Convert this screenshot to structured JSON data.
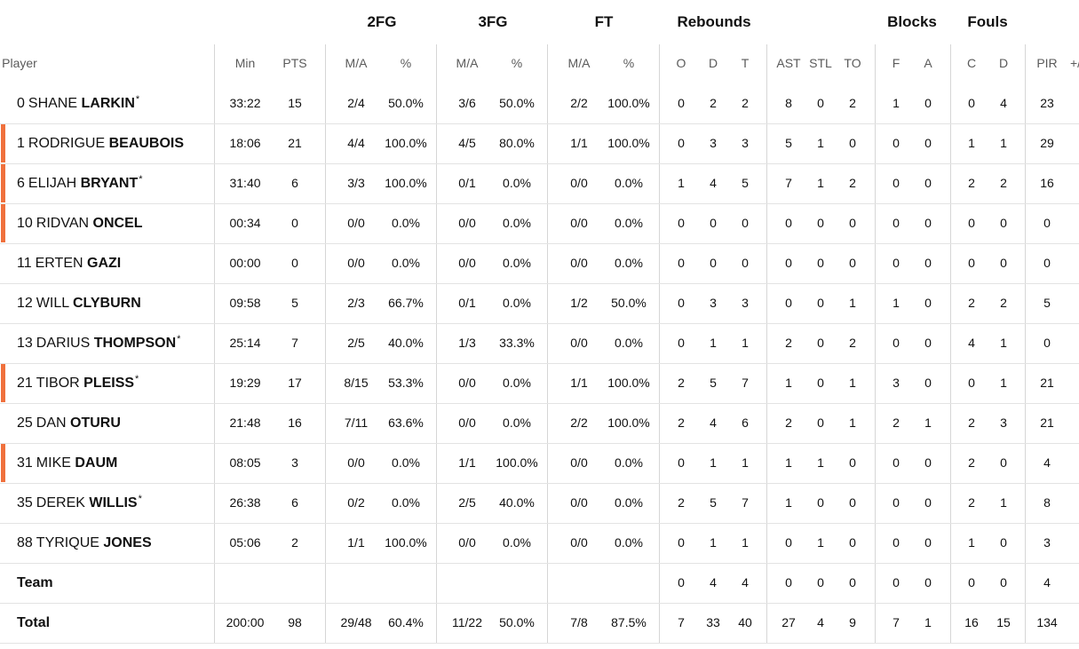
{
  "groups": {
    "fg2": "2FG",
    "fg3": "3FG",
    "ft": "FT",
    "reb": "Rebounds",
    "blk": "Blocks",
    "fouls": "Fouls"
  },
  "headers": {
    "player": "Player",
    "min": "Min",
    "pts": "PTS",
    "fg2_ma": "M/A",
    "fg2_pct": "%",
    "fg3_ma": "M/A",
    "fg3_pct": "%",
    "ft_ma": "M/A",
    "ft_pct": "%",
    "o": "O",
    "d": "D",
    "t": "T",
    "ast": "AST",
    "stl": "STL",
    "to": "TO",
    "f": "F",
    "a": "A",
    "c": "C",
    "d2": "D",
    "pir": "PIR",
    "pm": "+/"
  },
  "players": [
    {
      "num": "0",
      "first": "SHANE",
      "last": "LARKIN",
      "starter": true,
      "starter_mark": "*",
      "accent": false,
      "min": "33:22",
      "pts": "15",
      "fg2": "2/4",
      "fg2p": "50.0%",
      "fg3": "3/6",
      "fg3p": "50.0%",
      "ft": "2/2",
      "ftp": "100.0%",
      "o": "0",
      "d": "2",
      "t": "2",
      "ast": "8",
      "stl": "0",
      "to": "2",
      "bf": "1",
      "ba": "0",
      "fc": "0",
      "fd": "4",
      "pir": "23"
    },
    {
      "num": "1",
      "first": "RODRIGUE",
      "last": "BEAUBOIS",
      "starter": false,
      "starter_mark": "",
      "accent": true,
      "min": "18:06",
      "pts": "21",
      "fg2": "4/4",
      "fg2p": "100.0%",
      "fg3": "4/5",
      "fg3p": "80.0%",
      "ft": "1/1",
      "ftp": "100.0%",
      "o": "0",
      "d": "3",
      "t": "3",
      "ast": "5",
      "stl": "1",
      "to": "0",
      "bf": "0",
      "ba": "0",
      "fc": "1",
      "fd": "1",
      "pir": "29"
    },
    {
      "num": "6",
      "first": "ELIJAH",
      "last": "BRYANT",
      "starter": true,
      "starter_mark": "*",
      "accent": true,
      "min": "31:40",
      "pts": "6",
      "fg2": "3/3",
      "fg2p": "100.0%",
      "fg3": "0/1",
      "fg3p": "0.0%",
      "ft": "0/0",
      "ftp": "0.0%",
      "o": "1",
      "d": "4",
      "t": "5",
      "ast": "7",
      "stl": "1",
      "to": "2",
      "bf": "0",
      "ba": "0",
      "fc": "2",
      "fd": "2",
      "pir": "16"
    },
    {
      "num": "10",
      "first": "RIDVAN",
      "last": "ONCEL",
      "starter": false,
      "starter_mark": "",
      "accent": true,
      "min": "00:34",
      "pts": "0",
      "fg2": "0/0",
      "fg2p": "0.0%",
      "fg3": "0/0",
      "fg3p": "0.0%",
      "ft": "0/0",
      "ftp": "0.0%",
      "o": "0",
      "d": "0",
      "t": "0",
      "ast": "0",
      "stl": "0",
      "to": "0",
      "bf": "0",
      "ba": "0",
      "fc": "0",
      "fd": "0",
      "pir": "0"
    },
    {
      "num": "11",
      "first": "ERTEN",
      "last": "GAZI",
      "starter": false,
      "starter_mark": "",
      "accent": false,
      "min": "00:00",
      "pts": "0",
      "fg2": "0/0",
      "fg2p": "0.0%",
      "fg3": "0/0",
      "fg3p": "0.0%",
      "ft": "0/0",
      "ftp": "0.0%",
      "o": "0",
      "d": "0",
      "t": "0",
      "ast": "0",
      "stl": "0",
      "to": "0",
      "bf": "0",
      "ba": "0",
      "fc": "0",
      "fd": "0",
      "pir": "0"
    },
    {
      "num": "12",
      "first": "WILL",
      "last": "CLYBURN",
      "starter": false,
      "starter_mark": "",
      "accent": false,
      "min": "09:58",
      "pts": "5",
      "fg2": "2/3",
      "fg2p": "66.7%",
      "fg3": "0/1",
      "fg3p": "0.0%",
      "ft": "1/2",
      "ftp": "50.0%",
      "o": "0",
      "d": "3",
      "t": "3",
      "ast": "0",
      "stl": "0",
      "to": "1",
      "bf": "1",
      "ba": "0",
      "fc": "2",
      "fd": "2",
      "pir": "5"
    },
    {
      "num": "13",
      "first": "DARIUS",
      "last": "THOMPSON",
      "starter": true,
      "starter_mark": "*",
      "accent": false,
      "min": "25:14",
      "pts": "7",
      "fg2": "2/5",
      "fg2p": "40.0%",
      "fg3": "1/3",
      "fg3p": "33.3%",
      "ft": "0/0",
      "ftp": "0.0%",
      "o": "0",
      "d": "1",
      "t": "1",
      "ast": "2",
      "stl": "0",
      "to": "2",
      "bf": "0",
      "ba": "0",
      "fc": "4",
      "fd": "1",
      "pir": "0"
    },
    {
      "num": "21",
      "first": "TIBOR",
      "last": "PLEISS",
      "starter": true,
      "starter_mark": "*",
      "accent": true,
      "min": "19:29",
      "pts": "17",
      "fg2": "8/15",
      "fg2p": "53.3%",
      "fg3": "0/0",
      "fg3p": "0.0%",
      "ft": "1/1",
      "ftp": "100.0%",
      "o": "2",
      "d": "5",
      "t": "7",
      "ast": "1",
      "stl": "0",
      "to": "1",
      "bf": "3",
      "ba": "0",
      "fc": "0",
      "fd": "1",
      "pir": "21"
    },
    {
      "num": "25",
      "first": "DAN",
      "last": "OTURU",
      "starter": false,
      "starter_mark": "",
      "accent": false,
      "min": "21:48",
      "pts": "16",
      "fg2": "7/11",
      "fg2p": "63.6%",
      "fg3": "0/0",
      "fg3p": "0.0%",
      "ft": "2/2",
      "ftp": "100.0%",
      "o": "2",
      "d": "4",
      "t": "6",
      "ast": "2",
      "stl": "0",
      "to": "1",
      "bf": "2",
      "ba": "1",
      "fc": "2",
      "fd": "3",
      "pir": "21"
    },
    {
      "num": "31",
      "first": "MIKE",
      "last": "DAUM",
      "starter": false,
      "starter_mark": "",
      "accent": true,
      "min": "08:05",
      "pts": "3",
      "fg2": "0/0",
      "fg2p": "0.0%",
      "fg3": "1/1",
      "fg3p": "100.0%",
      "ft": "0/0",
      "ftp": "0.0%",
      "o": "0",
      "d": "1",
      "t": "1",
      "ast": "1",
      "stl": "1",
      "to": "0",
      "bf": "0",
      "ba": "0",
      "fc": "2",
      "fd": "0",
      "pir": "4"
    },
    {
      "num": "35",
      "first": "DEREK",
      "last": "WILLIS",
      "starter": true,
      "starter_mark": "*",
      "accent": false,
      "min": "26:38",
      "pts": "6",
      "fg2": "0/2",
      "fg2p": "0.0%",
      "fg3": "2/5",
      "fg3p": "40.0%",
      "ft": "0/0",
      "ftp": "0.0%",
      "o": "2",
      "d": "5",
      "t": "7",
      "ast": "1",
      "stl": "0",
      "to": "0",
      "bf": "0",
      "ba": "0",
      "fc": "2",
      "fd": "1",
      "pir": "8"
    },
    {
      "num": "88",
      "first": "TYRIQUE",
      "last": "JONES",
      "starter": false,
      "starter_mark": "",
      "accent": false,
      "min": "05:06",
      "pts": "2",
      "fg2": "1/1",
      "fg2p": "100.0%",
      "fg3": "0/0",
      "fg3p": "0.0%",
      "ft": "0/0",
      "ftp": "0.0%",
      "o": "0",
      "d": "1",
      "t": "1",
      "ast": "0",
      "stl": "1",
      "to": "0",
      "bf": "0",
      "ba": "0",
      "fc": "1",
      "fd": "0",
      "pir": "3"
    }
  ],
  "team": {
    "label": "Team",
    "o": "0",
    "d": "4",
    "t": "4",
    "ast": "0",
    "stl": "0",
    "to": "0",
    "bf": "0",
    "ba": "0",
    "fc": "0",
    "fd": "0",
    "pir": "4"
  },
  "total": {
    "label": "Total",
    "min": "200:00",
    "pts": "98",
    "fg2": "29/48",
    "fg2p": "60.4%",
    "fg3": "11/22",
    "fg3p": "50.0%",
    "ft": "7/8",
    "ftp": "87.5%",
    "o": "7",
    "d": "33",
    "t": "40",
    "ast": "27",
    "stl": "4",
    "to": "9",
    "bf": "7",
    "ba": "1",
    "fc": "16",
    "fd": "15",
    "pir": "134"
  },
  "colors": {
    "accent": "#f0703c",
    "divider": "#d6d6d6",
    "header_text": "#5a5a5a"
  }
}
